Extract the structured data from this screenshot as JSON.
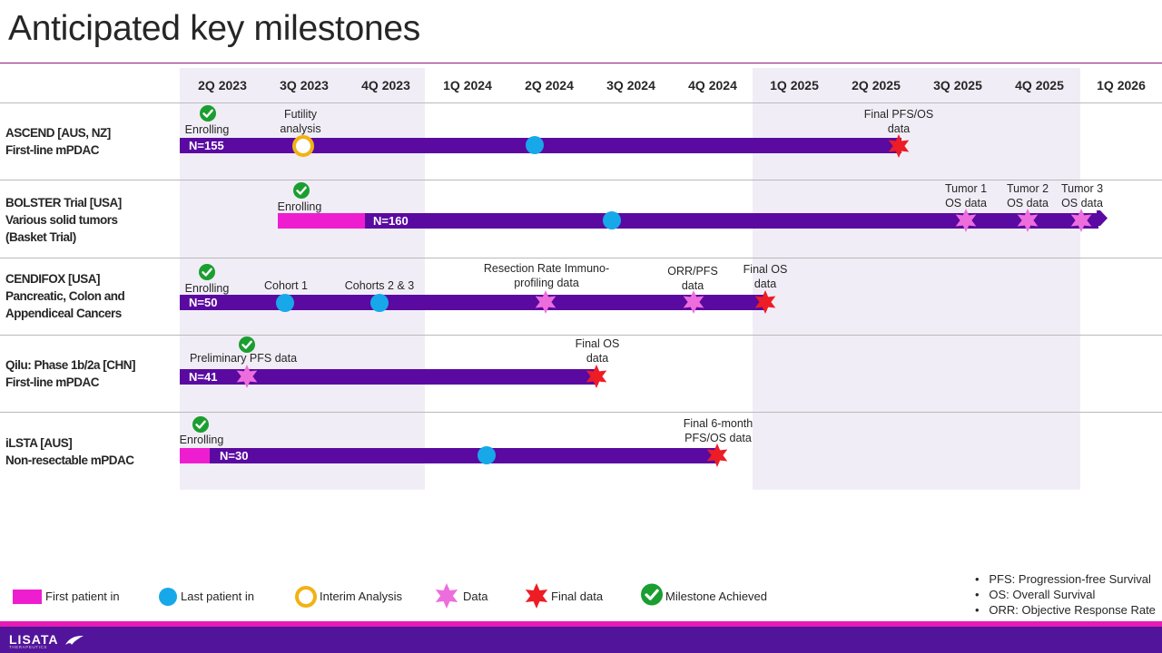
{
  "title": "Anticipated key milestones",
  "quarters": [
    "2Q 2023",
    "3Q 2023",
    "4Q 2023",
    "1Q 2024",
    "2Q 2024",
    "3Q 2024",
    "4Q 2024",
    "1Q 2025",
    "2Q 2025",
    "3Q 2025",
    "4Q 2025",
    "1Q 2026"
  ],
  "colors": {
    "bar": "#5a0aa0",
    "first_patient": "#ee1ed0",
    "last_patient": "#17a8ea",
    "interim": "#f2b212",
    "data": "#ee6ddd",
    "final": "#ee1c25",
    "achieved": "#1b9e30"
  },
  "trials": [
    {
      "name_lines": [
        "ASCEND [AUS, NZ]",
        "First-line mPDAC"
      ],
      "n_label": "N=155",
      "milestone_texts": [
        "Enrolling",
        "Futility analysis",
        "Final PFS/OS data"
      ]
    },
    {
      "name_lines": [
        "BOLSTER Trial [USA]",
        "Various solid tumors",
        "(Basket Trial)"
      ],
      "n_label": "N=160",
      "milestone_texts": [
        "Enrolling",
        "Tumor 1 OS data",
        "Tumor 2 OS data",
        "Tumor 3 OS data"
      ]
    },
    {
      "name_lines": [
        "CENDIFOX [USA]",
        "Pancreatic, Colon and",
        "Appendiceal Cancers"
      ],
      "n_label": "N=50",
      "milestone_texts": [
        "Enrolling",
        "Cohort 1",
        "Cohorts 2 & 3",
        "Resection Rate Immuno-profiling data",
        "ORR/PFS data",
        "Final OS data"
      ]
    },
    {
      "name_lines": [
        "Qilu: Phase 1b/2a [CHN]",
        "First-line mPDAC"
      ],
      "n_label": "N=41",
      "milestone_texts": [
        "Preliminary PFS data",
        "Final OS data"
      ]
    },
    {
      "name_lines": [
        "iLSTA [AUS]",
        "Non-resectable mPDAC"
      ],
      "n_label": "N=30",
      "milestone_texts": [
        "Enrolling",
        "Final 6-month PFS/OS data"
      ]
    }
  ],
  "legend": [
    "First patient in",
    "Last patient in",
    "Interim Analysis",
    "Data",
    "Final data",
    "Milestone Achieved"
  ],
  "notes": [
    "PFS: Progression-free Survival",
    "OS: Overall Survival",
    "ORR: Objective Response Rate"
  ],
  "logo": {
    "name": "LISATA",
    "tagline": "THERAPEUTICS"
  }
}
